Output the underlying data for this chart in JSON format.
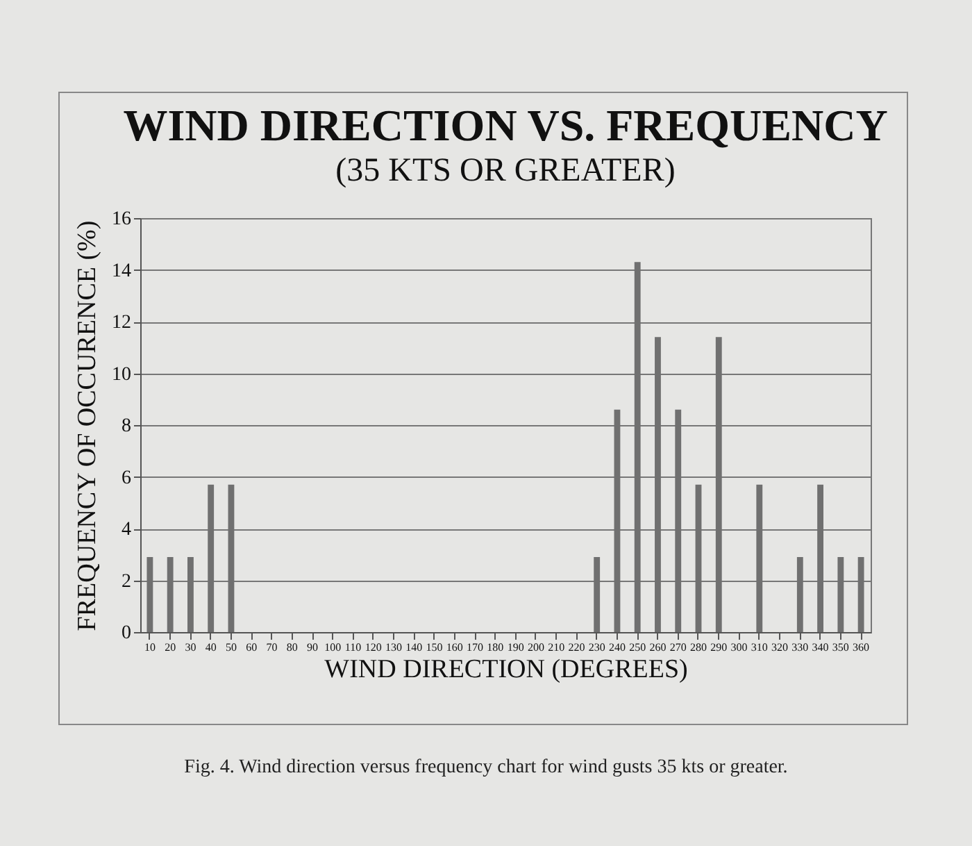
{
  "chart_data": {
    "type": "bar",
    "title": "WIND DIRECTION VS. FREQUENCY",
    "subtitle": "(35 KTS OR GREATER)",
    "xlabel": "WIND DIRECTION (DEGREES)",
    "ylabel": "FREQUENCY OF OCCURENCE (%)",
    "categories": [
      "10",
      "20",
      "30",
      "40",
      "50",
      "60",
      "70",
      "80",
      "90",
      "100",
      "110",
      "120",
      "130",
      "140",
      "150",
      "160",
      "170",
      "180",
      "190",
      "200",
      "210",
      "220",
      "230",
      "240",
      "250",
      "260",
      "270",
      "280",
      "290",
      "300",
      "310",
      "320",
      "330",
      "340",
      "350",
      "360"
    ],
    "values": [
      2.9,
      2.9,
      2.9,
      5.7,
      5.7,
      0,
      0,
      0,
      0,
      0,
      0,
      0,
      0,
      0,
      0,
      0,
      0,
      0,
      0,
      0,
      0,
      0,
      2.9,
      8.6,
      14.3,
      11.4,
      8.6,
      5.7,
      11.4,
      0,
      5.7,
      0,
      2.9,
      5.7,
      2.9,
      2.9
    ],
    "color": "#707070",
    "ylim": [
      0,
      16
    ],
    "yticks": [
      0,
      2,
      4,
      6,
      8,
      10,
      12,
      14,
      16
    ],
    "grid": "y",
    "annotations": [
      "Fig. 4. Wind direction versus frequency chart for wind gusts 35 kts or greater."
    ]
  }
}
